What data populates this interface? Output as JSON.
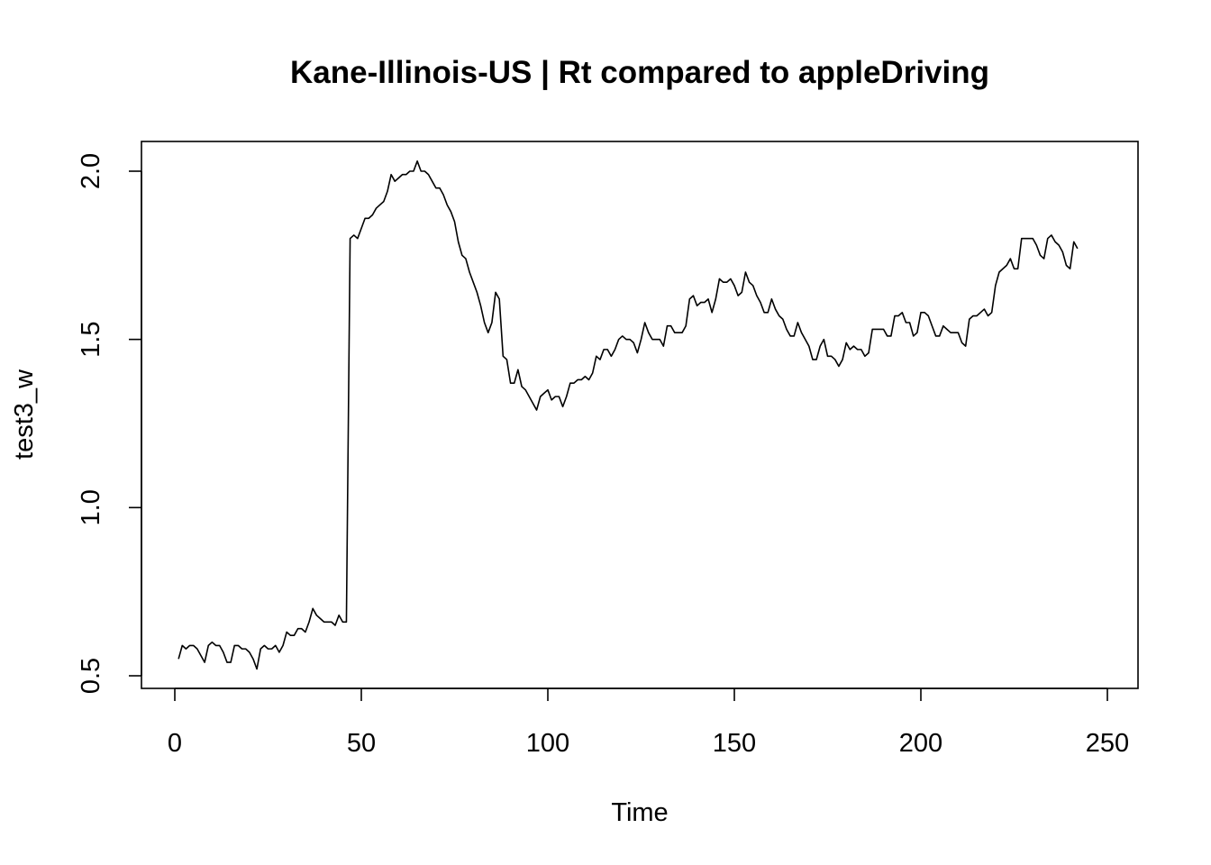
{
  "chart_data": {
    "type": "line",
    "title": "Kane-Illinois-US | Rt compared to appleDriving",
    "xlabel": "Time",
    "ylabel": "test3_w",
    "xlim": [
      1,
      248
    ],
    "ylim": [
      0.5,
      2.02
    ],
    "x_ticks": [
      0,
      50,
      100,
      150,
      200,
      250
    ],
    "x_tick_labels": [
      "0",
      "50",
      "100",
      "150",
      "200",
      "250"
    ],
    "y_ticks": [
      0.5,
      1.0,
      1.5,
      2.0
    ],
    "y_tick_labels": [
      "0.5",
      "1.0",
      "1.5",
      "2.0"
    ],
    "grid": false,
    "legend": "none",
    "series": [
      {
        "color": "#000000",
        "x_start": 1,
        "x_step": 1,
        "values": [
          0.55,
          0.59,
          0.58,
          0.59,
          0.59,
          0.58,
          0.56,
          0.54,
          0.59,
          0.6,
          0.59,
          0.59,
          0.57,
          0.54,
          0.54,
          0.59,
          0.59,
          0.58,
          0.58,
          0.57,
          0.55,
          0.52,
          0.58,
          0.59,
          0.58,
          0.58,
          0.59,
          0.57,
          0.59,
          0.63,
          0.62,
          0.62,
          0.64,
          0.64,
          0.63,
          0.66,
          0.7,
          0.68,
          0.67,
          0.66,
          0.66,
          0.66,
          0.65,
          0.68,
          0.66,
          0.66,
          1.8,
          1.81,
          1.8,
          1.83,
          1.86,
          1.86,
          1.87,
          1.89,
          1.9,
          1.91,
          1.94,
          1.99,
          1.97,
          1.98,
          1.99,
          1.99,
          2.0,
          2.0,
          2.03,
          2.0,
          2.0,
          1.99,
          1.97,
          1.95,
          1.95,
          1.93,
          1.9,
          1.88,
          1.85,
          1.79,
          1.75,
          1.74,
          1.7,
          1.67,
          1.64,
          1.6,
          1.55,
          1.52,
          1.55,
          1.64,
          1.62,
          1.45,
          1.44,
          1.37,
          1.37,
          1.41,
          1.36,
          1.35,
          1.33,
          1.31,
          1.29,
          1.33,
          1.34,
          1.35,
          1.32,
          1.33,
          1.33,
          1.3,
          1.33,
          1.37,
          1.37,
          1.38,
          1.38,
          1.39,
          1.38,
          1.4,
          1.45,
          1.44,
          1.47,
          1.47,
          1.45,
          1.47,
          1.5,
          1.51,
          1.5,
          1.5,
          1.49,
          1.46,
          1.5,
          1.55,
          1.52,
          1.5,
          1.5,
          1.5,
          1.48,
          1.54,
          1.54,
          1.52,
          1.52,
          1.52,
          1.54,
          1.62,
          1.63,
          1.6,
          1.61,
          1.61,
          1.62,
          1.58,
          1.62,
          1.68,
          1.67,
          1.67,
          1.68,
          1.66,
          1.63,
          1.64,
          1.7,
          1.67,
          1.66,
          1.63,
          1.61,
          1.58,
          1.58,
          1.62,
          1.59,
          1.57,
          1.56,
          1.53,
          1.51,
          1.51,
          1.55,
          1.52,
          1.5,
          1.48,
          1.44,
          1.44,
          1.48,
          1.5,
          1.45,
          1.45,
          1.44,
          1.42,
          1.44,
          1.49,
          1.47,
          1.48,
          1.47,
          1.47,
          1.45,
          1.46,
          1.53,
          1.53,
          1.53,
          1.53,
          1.51,
          1.51,
          1.57,
          1.57,
          1.58,
          1.55,
          1.55,
          1.51,
          1.52,
          1.58,
          1.58,
          1.57,
          1.54,
          1.51,
          1.51,
          1.54,
          1.53,
          1.52,
          1.52,
          1.52,
          1.49,
          1.48,
          1.56,
          1.57,
          1.57,
          1.58,
          1.59,
          1.57,
          1.58,
          1.66,
          1.7,
          1.71,
          1.72,
          1.74,
          1.71,
          1.71,
          1.8,
          1.8,
          1.8,
          1.8,
          1.78,
          1.75,
          1.74,
          1.8,
          1.81,
          1.79,
          1.78,
          1.76,
          1.72,
          1.71,
          1.79,
          1.77
        ]
      }
    ]
  }
}
